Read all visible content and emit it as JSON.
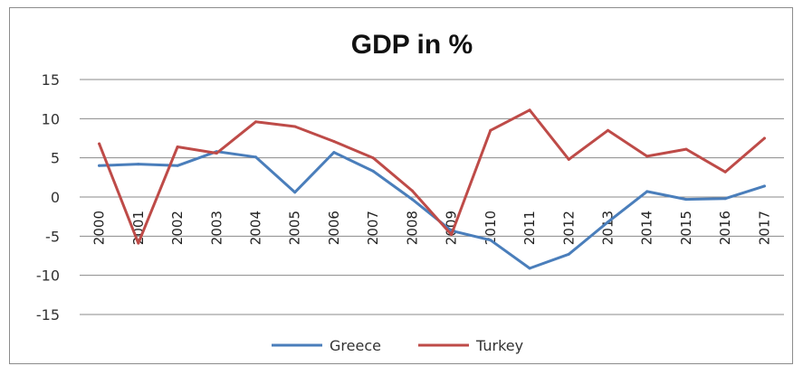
{
  "chart_data": {
    "type": "line",
    "title": "GDP in %",
    "x": [
      "2000",
      "2001",
      "2002",
      "2003",
      "2004",
      "2005",
      "2006",
      "2007",
      "2008",
      "2009",
      "2010",
      "2011",
      "2012",
      "2013",
      "2014",
      "2015",
      "2016",
      "2017"
    ],
    "yticks": [
      "15",
      "10",
      "5",
      "0",
      "-5",
      "-10",
      "-15"
    ],
    "ylim": [
      -15,
      15
    ],
    "grid": true,
    "legend": "bottom-center",
    "series": [
      {
        "name": "Greece",
        "color": "#4a7ebb",
        "values": [
          4.0,
          4.2,
          4.0,
          5.8,
          5.1,
          0.6,
          5.7,
          3.3,
          -0.3,
          -4.3,
          -5.5,
          -9.1,
          -7.3,
          -3.2,
          0.7,
          -0.3,
          -0.2,
          1.4
        ]
      },
      {
        "name": "Turkey",
        "color": "#be4b48",
        "values": [
          6.8,
          -5.9,
          6.4,
          5.6,
          9.6,
          9.0,
          7.1,
          5.0,
          0.8,
          -4.8,
          8.5,
          11.1,
          4.8,
          8.5,
          5.2,
          6.1,
          3.2,
          7.5
        ]
      }
    ]
  }
}
